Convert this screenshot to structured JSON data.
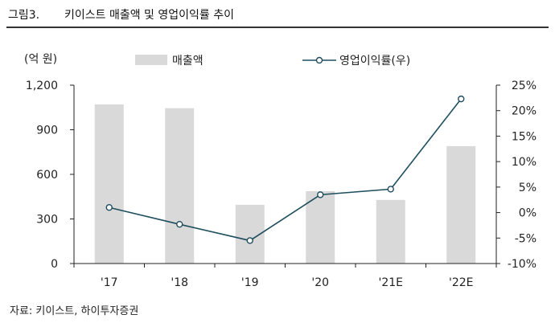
{
  "figure": {
    "label": "그림3.",
    "title": "키이스트 매출액 및 영업이익률 추이",
    "source": "자료: 키이스트, 하이투자증권"
  },
  "chart_data": {
    "type": "bar",
    "categories": [
      "'17",
      "'18",
      "'19",
      "'20",
      "'21E",
      "'22E"
    ],
    "y_left": {
      "unit_label": "(억 원)",
      "range": [
        0,
        1200
      ],
      "ticks": [
        0,
        300,
        600,
        900,
        1200
      ],
      "tick_labels": [
        "0",
        "300",
        "600",
        "900",
        "1,200"
      ]
    },
    "y_right": {
      "range": [
        -10,
        25
      ],
      "ticks": [
        -10,
        -5,
        0,
        5,
        10,
        15,
        20,
        25
      ],
      "tick_labels": [
        "-10%",
        "-5%",
        "0%",
        "5%",
        "10%",
        "15%",
        "20%",
        "25%"
      ]
    },
    "series": [
      {
        "name": "매출액",
        "type": "bar",
        "axis": "left",
        "values": [
          1070,
          1045,
          395,
          487,
          428,
          790
        ]
      },
      {
        "name": "영업이익률(우)",
        "type": "line",
        "axis": "right",
        "values": [
          1.0,
          -2.3,
          -5.5,
          3.5,
          4.6,
          22.3
        ]
      }
    ],
    "legend": "top",
    "grid": false,
    "colors": {
      "bar": "#d9d9d9",
      "line": "#1f4e5f",
      "marker_fill": "#ffffff"
    }
  }
}
